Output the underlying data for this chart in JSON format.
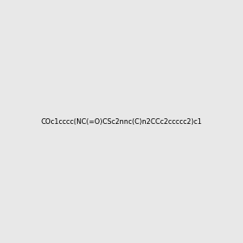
{
  "smiles": "COc1cccc(NC(=O)CSc2nnc(C)n2CCc2ccccc2)c1",
  "background_color": "#e8e8e8",
  "fig_size": [
    3.0,
    3.0
  ],
  "dpi": 100
}
